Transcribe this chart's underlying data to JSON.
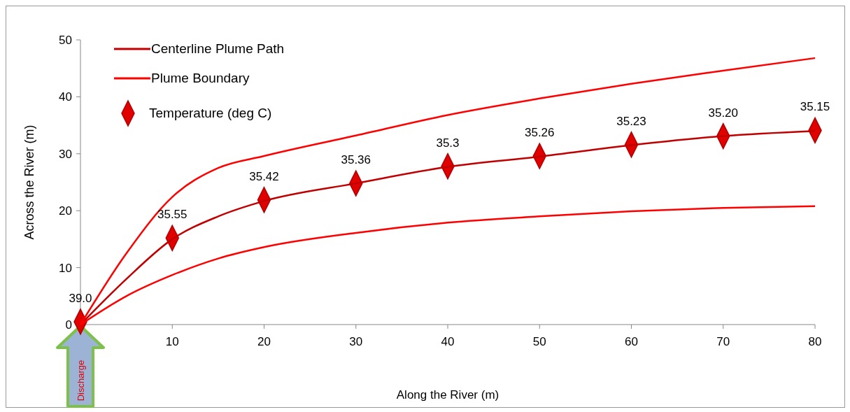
{
  "chart_data": {
    "type": "line",
    "xlabel": "Along the River (m)",
    "ylabel": "Across the River (m)",
    "xlim": [
      0,
      80
    ],
    "ylim": [
      0,
      50
    ],
    "xticks": [
      {
        "value": 0,
        "label": null
      },
      10,
      20,
      30,
      40,
      50,
      60,
      70,
      80
    ],
    "yticks": [
      0,
      10,
      20,
      30,
      40,
      50
    ],
    "grid": false,
    "legend": "top left",
    "series": [
      {
        "name": "Centerline Plume Path",
        "color": "#c00000",
        "x": [
          0,
          5,
          10,
          15,
          20,
          30,
          40,
          50,
          60,
          70,
          80
        ],
        "values": [
          0,
          8,
          15,
          19,
          21.7,
          24.8,
          27.7,
          29.5,
          31.5,
          33.1,
          34
        ]
      },
      {
        "name": "Plume Boundary",
        "color": "#ff0000",
        "x": [
          0,
          5,
          10,
          15,
          20,
          30,
          40,
          50,
          60,
          70,
          80
        ],
        "values": [
          0,
          12.5,
          22.4,
          27.5,
          29.6,
          33.2,
          36.8,
          39.7,
          42.3,
          44.6,
          46.8
        ]
      },
      {
        "color": "#ff0000",
        "x": [
          0,
          5,
          10,
          15,
          20,
          30,
          40,
          50,
          60,
          70,
          80
        ],
        "values": [
          0,
          5,
          8.7,
          11.6,
          13.6,
          16.1,
          17.9,
          19,
          19.9,
          20.5,
          20.8
        ]
      },
      {
        "name": "Temperature  (deg C)",
        "type": "scatter",
        "marker": "diamond",
        "color": "#e00000",
        "x": [
          0,
          10,
          20,
          30,
          40,
          50,
          60,
          70,
          80
        ],
        "values": [
          0.5,
          15.2,
          21.9,
          24.8,
          27.8,
          29.6,
          31.6,
          33.1,
          34.1
        ]
      }
    ],
    "annotations": [
      {
        "text": "39.0",
        "x": 0,
        "y": 0.5
      },
      {
        "text": "35.55",
        "x": 10,
        "y": 15.2
      },
      {
        "text": "35.42",
        "x": 20,
        "y": 21.9
      },
      {
        "text": "35.36",
        "x": 30,
        "y": 24.8
      },
      {
        "text": "35.3",
        "x": 40,
        "y": 27.8
      },
      {
        "text": "35.26",
        "x": 50,
        "y": 29.6
      },
      {
        "text": "35.23",
        "x": 60,
        "y": 31.6
      },
      {
        "text": "35.20",
        "x": 70,
        "y": 33.1
      },
      {
        "text": "35.15",
        "x": 80,
        "y": 34.1
      },
      "Discharge"
    ]
  }
}
